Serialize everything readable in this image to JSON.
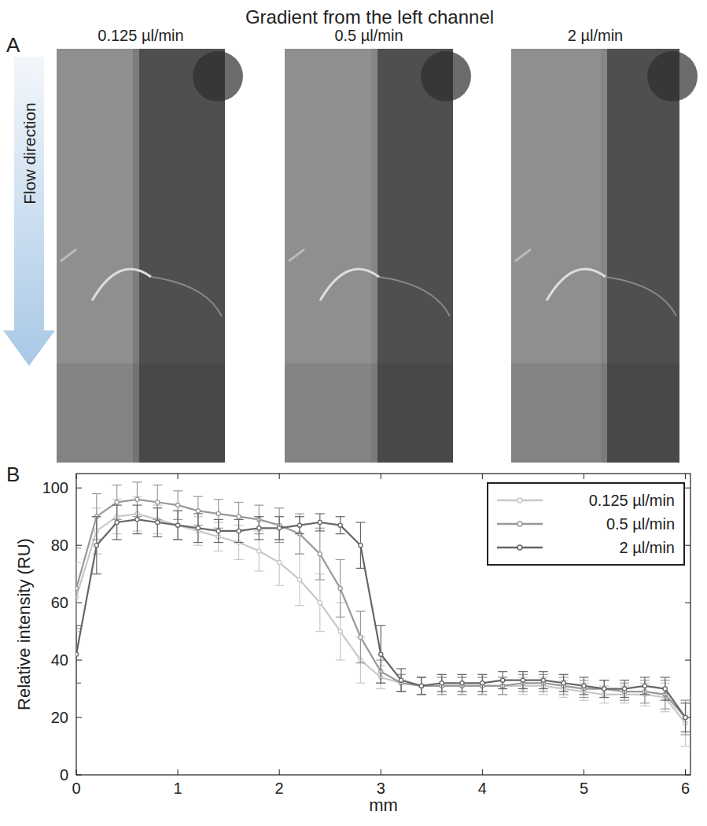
{
  "panel_a": {
    "label": "A",
    "title": "Gradient from the left channel",
    "images": [
      "0.125 µl/min",
      "0.5 µl/min",
      "2 µl/min"
    ],
    "flow_label": "Flow direction"
  },
  "panel_b": {
    "label": "B"
  },
  "chart_data": {
    "type": "line",
    "x_label": "mm",
    "y_label": "Relative intensity (RU)",
    "x": [
      0,
      0.2,
      0.4,
      0.6,
      0.8,
      1.0,
      1.2,
      1.4,
      1.6,
      1.8,
      2.0,
      2.2,
      2.4,
      2.6,
      2.8,
      3.0,
      3.2,
      3.4,
      3.6,
      3.8,
      4.0,
      4.2,
      4.4,
      4.6,
      4.8,
      5.0,
      5.2,
      5.4,
      5.6,
      5.8,
      6.0
    ],
    "xlim": [
      0,
      6.05
    ],
    "xticks": [
      0,
      1,
      2,
      3,
      4,
      5,
      6
    ],
    "ylim": [
      0,
      105
    ],
    "yticks": [
      0,
      20,
      40,
      60,
      80,
      100
    ],
    "grid": false,
    "legend": "top-right",
    "marker": "circle",
    "series": [
      {
        "name": "0.125 µl/min",
        "color": "#c8c8c8",
        "values": [
          62,
          85,
          90,
          91,
          89,
          87,
          85,
          83,
          81,
          78,
          74,
          68,
          60,
          50,
          40,
          34,
          32,
          31,
          31,
          31,
          31,
          31,
          31,
          31,
          30,
          29,
          28,
          28,
          28,
          27,
          18
        ],
        "errors": [
          12,
          8,
          6,
          6,
          5,
          5,
          5,
          5,
          6,
          7,
          8,
          9,
          10,
          10,
          8,
          4,
          3,
          3,
          3,
          3,
          3,
          3,
          3,
          3,
          3,
          3,
          3,
          3,
          4,
          5,
          8
        ]
      },
      {
        "name": "0.5 µl/min",
        "color": "#999999",
        "values": [
          65,
          90,
          95,
          96,
          95,
          94,
          92,
          91,
          90,
          89,
          87,
          84,
          77,
          65,
          48,
          36,
          32,
          31,
          31,
          31,
          31,
          31,
          32,
          32,
          31,
          30,
          30,
          29,
          29,
          28,
          20
        ],
        "errors": [
          14,
          8,
          6,
          6,
          6,
          5,
          5,
          5,
          5,
          5,
          6,
          7,
          9,
          10,
          9,
          4,
          3,
          3,
          3,
          3,
          3,
          3,
          3,
          3,
          3,
          3,
          3,
          3,
          4,
          5,
          6
        ]
      },
      {
        "name": "2 µl/min",
        "color": "#666666",
        "values": [
          42,
          80,
          88,
          89,
          88,
          87,
          86,
          85,
          85,
          86,
          86,
          87,
          88,
          87,
          80,
          42,
          33,
          31,
          32,
          32,
          32,
          33,
          33,
          33,
          32,
          31,
          30,
          30,
          31,
          30,
          20
        ],
        "errors": [
          10,
          10,
          6,
          5,
          5,
          5,
          5,
          4,
          4,
          4,
          4,
          3,
          3,
          3,
          8,
          10,
          4,
          3,
          3,
          3,
          3,
          3,
          3,
          3,
          3,
          3,
          3,
          3,
          3,
          4,
          5
        ]
      }
    ]
  }
}
